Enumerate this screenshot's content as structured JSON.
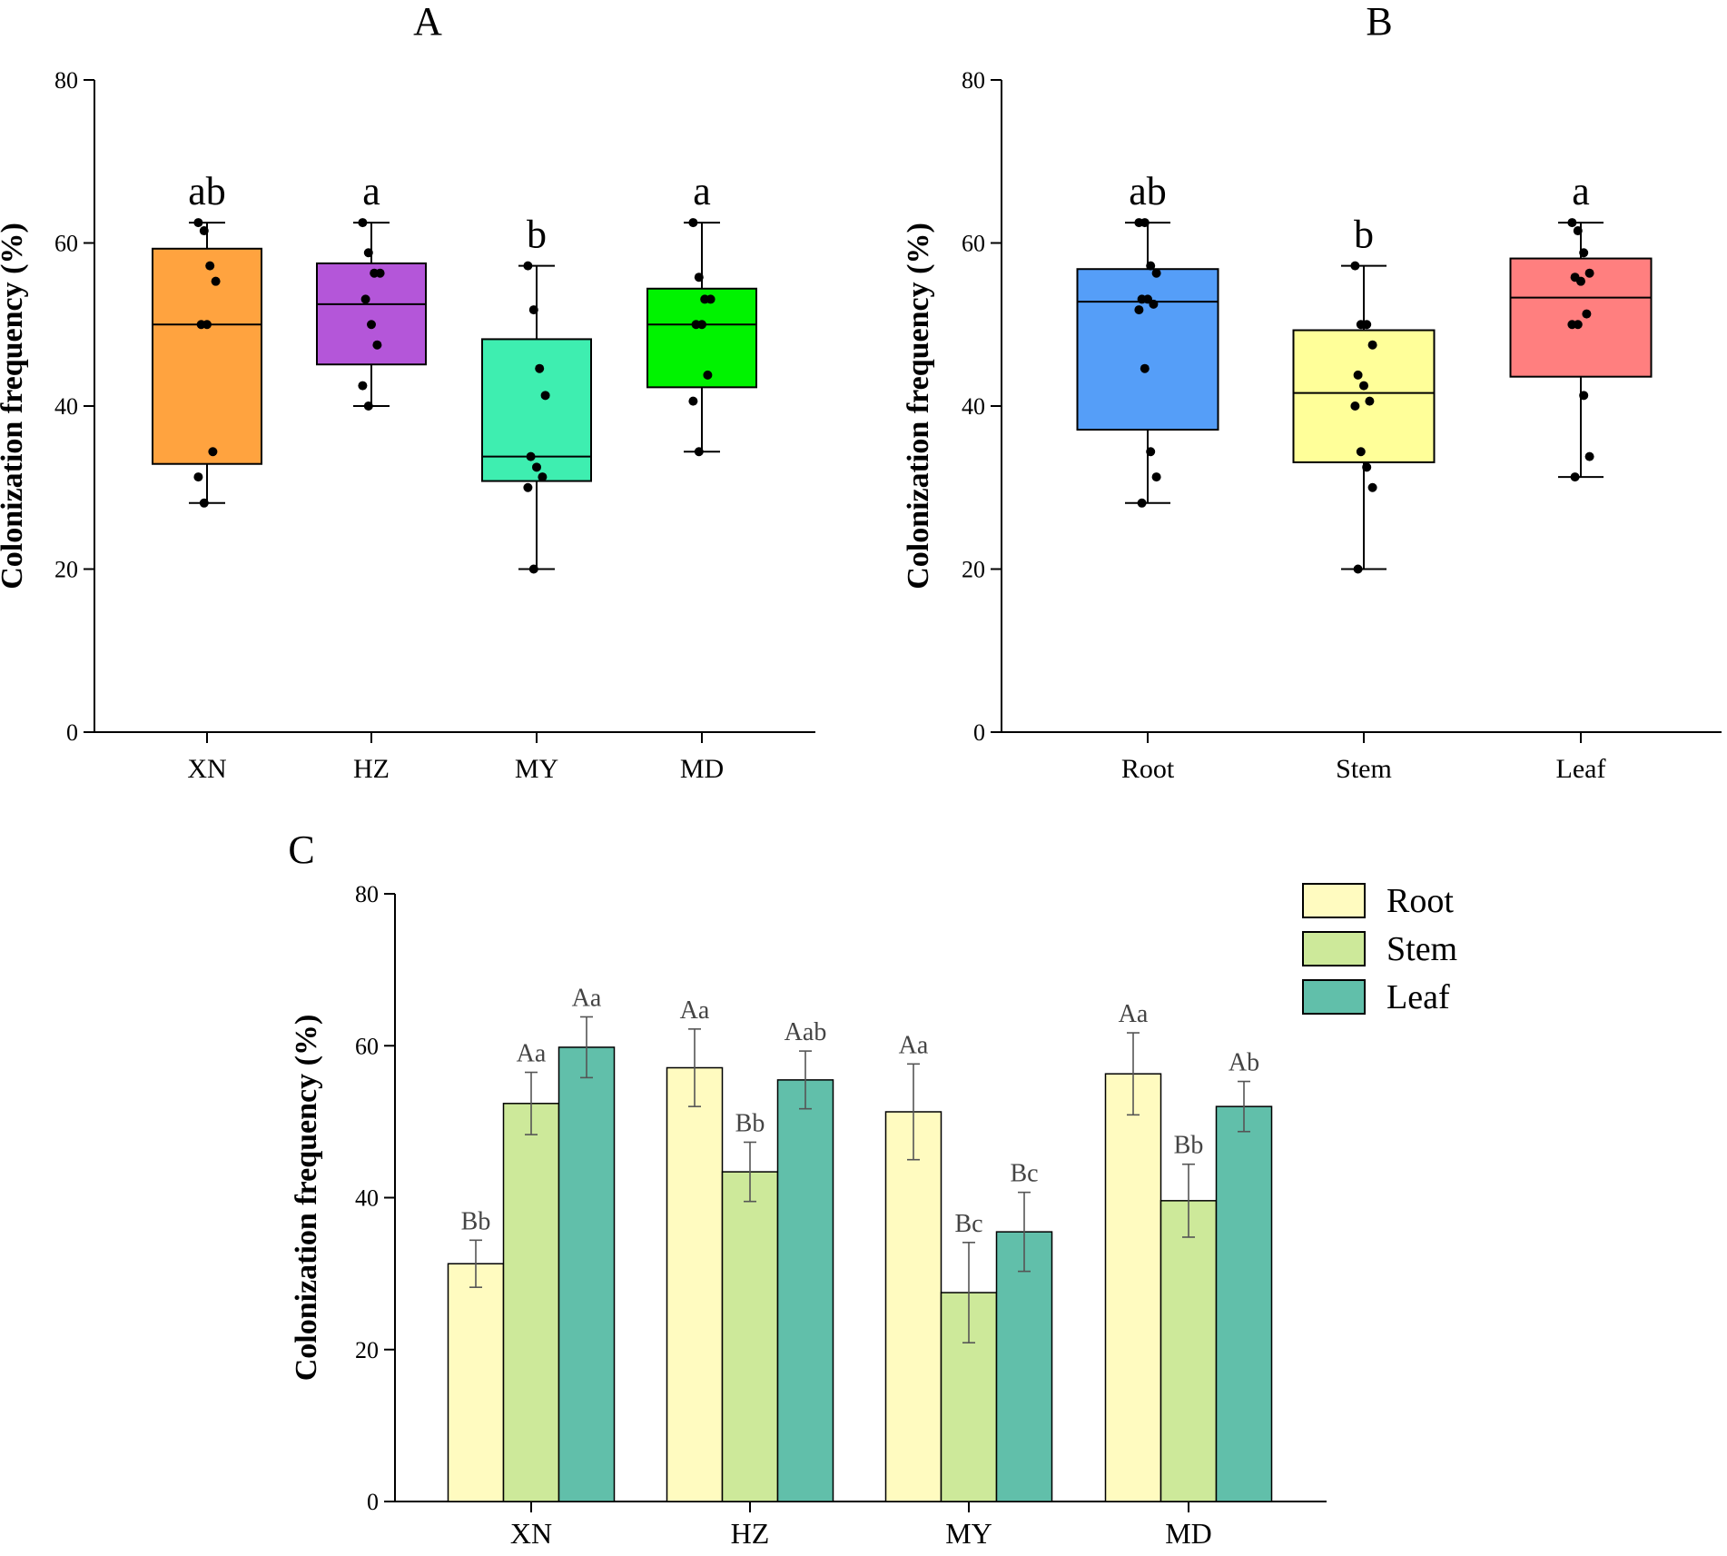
{
  "chart_data": [
    {
      "panel": "A",
      "type": "box",
      "ylabel": "Colonization frequency (%)",
      "ylim": [
        0,
        80
      ],
      "yticks": [
        0,
        20,
        40,
        60,
        80
      ],
      "categories": [
        "XN",
        "HZ",
        "MY",
        "MD"
      ],
      "boxes": [
        {
          "label": "XN",
          "color": "#FFA33F",
          "min": 28.1,
          "q1": 32.9,
          "median": 50.0,
          "q3": 59.3,
          "max": 62.5,
          "letter": "ab",
          "points": [
            62.5,
            61.5,
            57.2,
            55.3,
            50.0,
            50.0,
            34.4,
            31.3,
            28.1
          ]
        },
        {
          "label": "HZ",
          "color": "#B456D9",
          "min": 40.0,
          "q1": 45.1,
          "median": 52.5,
          "q3": 57.5,
          "max": 62.5,
          "letter": "a",
          "points": [
            62.5,
            58.8,
            56.3,
            56.3,
            53.1,
            50.0,
            47.5,
            42.5,
            40.0
          ]
        },
        {
          "label": "MY",
          "color": "#3EEEB0",
          "min": 20.0,
          "q1": 30.8,
          "median": 33.8,
          "q3": 48.2,
          "max": 57.2,
          "letter": "b",
          "points": [
            57.2,
            51.8,
            44.6,
            41.3,
            33.8,
            32.5,
            31.3,
            30.0,
            20.0
          ]
        },
        {
          "label": "MD",
          "color": "#00F300",
          "min": 34.4,
          "q1": 42.3,
          "median": 50.0,
          "q3": 54.4,
          "max": 62.5,
          "letter": "a",
          "points": [
            62.5,
            55.8,
            53.1,
            53.1,
            50.0,
            50.0,
            43.8,
            40.6,
            34.4
          ]
        }
      ]
    },
    {
      "panel": "B",
      "type": "box",
      "ylabel": "Colonization frequency (%)",
      "ylim": [
        0,
        80
      ],
      "yticks": [
        0,
        20,
        40,
        60,
        80
      ],
      "categories": [
        "Root",
        "Stem",
        "Leaf"
      ],
      "boxes": [
        {
          "label": "Root",
          "color": "#559EF8",
          "min": 28.1,
          "q1": 37.1,
          "median": 52.8,
          "q3": 56.8,
          "max": 62.5,
          "letter": "ab",
          "points": [
            62.5,
            62.5,
            57.2,
            56.3,
            53.1,
            53.1,
            52.5,
            51.8,
            44.6,
            34.4,
            31.3,
            28.1
          ]
        },
        {
          "label": "Stem",
          "color": "#FFFF99",
          "min": 20.0,
          "q1": 33.1,
          "median": 41.6,
          "q3": 49.3,
          "max": 57.2,
          "letter": "b",
          "points": [
            57.2,
            50.0,
            50.0,
            47.5,
            43.8,
            42.5,
            40.6,
            40.0,
            34.4,
            32.5,
            30.0,
            20.0
          ]
        },
        {
          "label": "Leaf",
          "color": "#FF7F7F",
          "min": 31.3,
          "q1": 43.6,
          "median": 53.3,
          "q3": 58.1,
          "max": 62.5,
          "letter": "a",
          "points": [
            62.5,
            61.5,
            58.8,
            56.3,
            55.8,
            55.3,
            51.3,
            50.0,
            50.0,
            41.3,
            33.8,
            31.3
          ]
        }
      ]
    },
    {
      "panel": "C",
      "type": "bar",
      "ylabel": "Colonization frequency (%)",
      "ylim": [
        0,
        80
      ],
      "yticks": [
        0,
        20,
        40,
        60,
        80
      ],
      "categories": [
        "XN",
        "HZ",
        "MY",
        "MD"
      ],
      "legend_position": "top-right",
      "series": [
        {
          "name": "Root",
          "color": "#FFFBC0",
          "values": [
            31.3,
            57.1,
            51.3,
            56.3
          ],
          "errors": [
            3.1,
            5.1,
            6.3,
            5.4
          ],
          "letters": [
            "Bb",
            "Aa",
            "Aa",
            "Aa"
          ]
        },
        {
          "name": "Stem",
          "color": "#CDE99A",
          "values": [
            52.4,
            43.4,
            27.5,
            39.6
          ],
          "errors": [
            4.1,
            3.9,
            6.6,
            4.8
          ],
          "letters": [
            "Aa",
            "Bb",
            "Bc",
            "Bb"
          ]
        },
        {
          "name": "Leaf",
          "color": "#61BFAA",
          "values": [
            59.8,
            55.5,
            35.5,
            52.0
          ],
          "errors": [
            4.0,
            3.8,
            5.2,
            3.3
          ],
          "letters": [
            "Aa",
            "Aab",
            "Bc",
            "Ab"
          ]
        }
      ]
    }
  ]
}
